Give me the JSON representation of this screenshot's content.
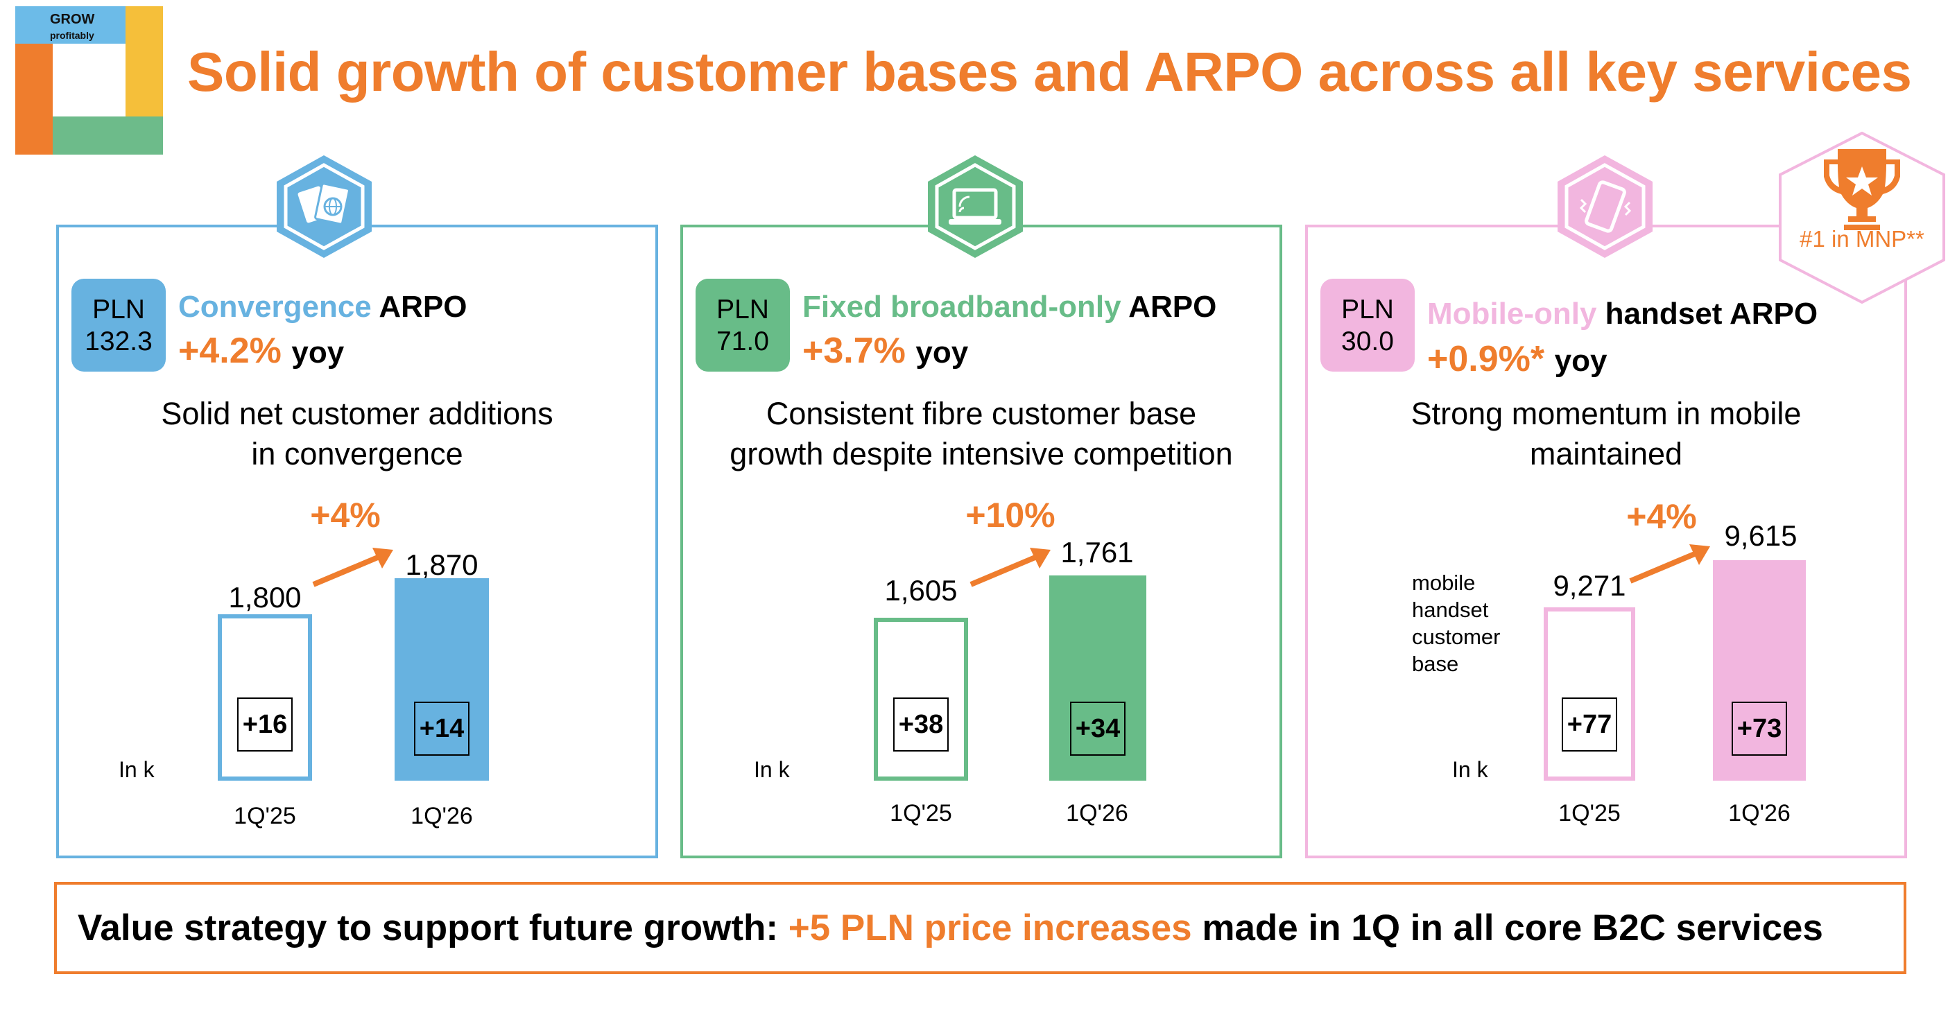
{
  "logo": {
    "line1": "GROW",
    "line2": "profitably"
  },
  "title": "Solid growth of customer bases and ARPO across all key services",
  "colors": {
    "orange": "#ef7d2d",
    "blue": "#67b2e0",
    "green": "#68bc88",
    "pink": "#f2b6df",
    "yellow": "#f5bf3a"
  },
  "award": {
    "icon": "trophy-star-icon",
    "label": "#1 in MNP**"
  },
  "panels": [
    {
      "icon": "convergence-cards-globe-icon",
      "badge": {
        "currency": "PLN",
        "value": "132.3"
      },
      "arpo_colored": "Convergence",
      "arpo_rest": "ARPO",
      "yoy_value": "+4.2%",
      "yoy_label": "yoy",
      "subtitle_line1": "Solid net customer additions",
      "subtitle_line2": "in convergence",
      "growth": "+4%",
      "unit": "In k",
      "bars": [
        {
          "category": "1Q'25",
          "value": "1,800",
          "net_adds": "+16"
        },
        {
          "category": "1Q'26",
          "value": "1,870",
          "net_adds": "+14"
        }
      ]
    },
    {
      "icon": "laptop-wifi-icon",
      "badge": {
        "currency": "PLN",
        "value": "71.0"
      },
      "arpo_colored": "Fixed broadband-only",
      "arpo_rest": "ARPO",
      "yoy_value": "+3.7%",
      "yoy_label": "yoy",
      "subtitle_line1": "Consistent fibre customer base",
      "subtitle_line2": "growth despite intensive competition",
      "growth": "+10%",
      "unit": "In k",
      "bars": [
        {
          "category": "1Q'25",
          "value": "1,605",
          "net_adds": "+38"
        },
        {
          "category": "1Q'26",
          "value": "1,761",
          "net_adds": "+34"
        }
      ]
    },
    {
      "icon": "mobile-phone-vibrate-icon",
      "badge": {
        "currency": "PLN",
        "value": "30.0"
      },
      "arpo_colored": "Mobile-only",
      "arpo_rest": "handset ARPO",
      "yoy_value": "+0.9%*",
      "yoy_label": "yoy",
      "subtitle_line1": "Strong momentum in mobile",
      "subtitle_line2": "maintained",
      "growth": "+4%",
      "unit": "In k",
      "series_label": [
        "mobile",
        "handset",
        "customer",
        "base"
      ],
      "bars": [
        {
          "category": "1Q'25",
          "value": "9,271",
          "net_adds": "+77"
        },
        {
          "category": "1Q'26",
          "value": "9,615",
          "net_adds": "+73"
        }
      ]
    }
  ],
  "footer": {
    "part1": "Value strategy to support future growth: ",
    "part2": "+5 PLN price increases",
    "part3": " made in 1Q in all core B2C services"
  }
}
